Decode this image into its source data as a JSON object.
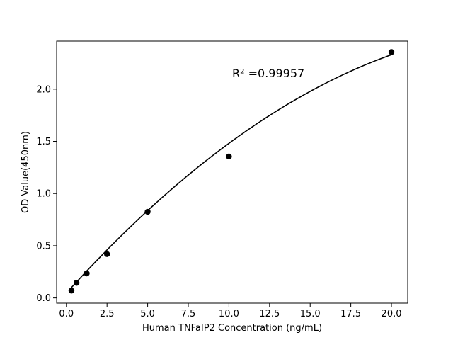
{
  "chart_data": {
    "type": "scatter",
    "title": "",
    "xlabel": "Human TNFaIP2 Concentration (ng/mL)",
    "ylabel": "OD Value(450nm)",
    "xlim": [
      -0.6,
      21.0
    ],
    "ylim": [
      -0.05,
      2.46
    ],
    "xticks": [
      0.0,
      2.5,
      5.0,
      7.5,
      10.0,
      12.5,
      15.0,
      17.5,
      20.0
    ],
    "xtick_labels": [
      "0.0",
      "2.5",
      "5.0",
      "7.5",
      "10.0",
      "12.5",
      "15.0",
      "17.5",
      "20.0"
    ],
    "yticks": [
      0.0,
      0.5,
      1.0,
      1.5,
      2.0
    ],
    "ytick_labels": [
      "0.0",
      "0.5",
      "1.0",
      "1.5",
      "2.0"
    ],
    "points": {
      "x": [
        0.3125,
        0.625,
        1.25,
        2.5,
        5.0,
        10.0,
        20.0
      ],
      "y": [
        0.07,
        0.145,
        0.235,
        0.42,
        0.825,
        1.355,
        2.355
      ]
    },
    "fit_curve": {
      "x_range": [
        0.3125,
        20.0
      ],
      "coefficients": [
        0.0457,
        0.1728,
        -0.00293
      ]
    },
    "annotation": "R² =0.99957",
    "grid": false,
    "legend": false,
    "colors": {
      "marker": "#000000",
      "line": "#000000",
      "axes": "#000000"
    }
  }
}
